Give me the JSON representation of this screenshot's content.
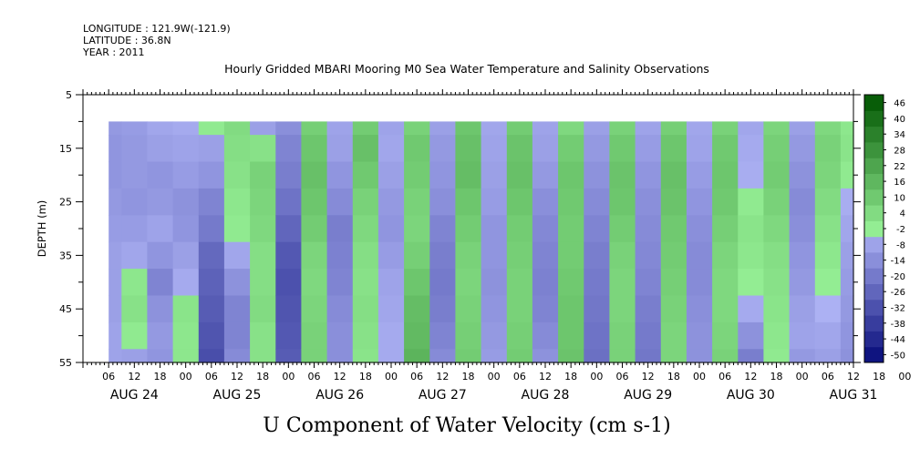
{
  "header": {
    "longitude": "LONGITUDE : 121.9W(-121.9)",
    "latitude": "LATITUDE : 36.8N",
    "year": "YEAR : 2011"
  },
  "chart_data": {
    "type": "heatmap",
    "title": "Hourly Gridded MBARI Mooring M0 Sea Water Temperature and Salinity Observations",
    "xlabel": "U Component of Water Velocity (cm s-1)",
    "ylabel": "DEPTH (m)",
    "ylim": [
      55,
      5
    ],
    "yticks": [
      5,
      15,
      25,
      35,
      45,
      55
    ],
    "xlim_hours": [
      0,
      180
    ],
    "data_start_hour": 6,
    "data_depth_range": [
      10,
      55
    ],
    "hour_tick_labels": [
      "06",
      "12",
      "18",
      "00",
      "06",
      "12",
      "18",
      "00",
      "06",
      "12",
      "18",
      "00",
      "06",
      "12",
      "18",
      "00",
      "06",
      "12",
      "18",
      "00",
      "06",
      "12",
      "18",
      "00",
      "06",
      "12",
      "18",
      "00",
      "06",
      "12",
      "18",
      "00"
    ],
    "day_labels": [
      "AUG 24",
      "AUG 25",
      "AUG 26",
      "AUG 27",
      "AUG 28",
      "AUG 29",
      "AUG 30",
      "AUG 31"
    ],
    "colorbar": {
      "levels": [
        -50,
        -44,
        -38,
        -32,
        -26,
        -20,
        -14,
        -8,
        -2,
        4,
        10,
        16,
        22,
        28,
        34,
        40,
        46
      ],
      "labels": [
        "46",
        "40",
        "34",
        "28",
        "22",
        "16",
        "10",
        "4",
        "-2",
        "-8",
        "-14",
        "-20",
        "-26",
        "-32",
        "-38",
        "-44",
        "-50"
      ]
    },
    "depths": [
      10,
      15,
      20,
      25,
      30,
      35,
      40,
      45,
      50,
      55
    ],
    "band_hours": [
      6,
      12,
      18,
      24,
      30,
      36,
      42,
      48,
      54,
      60,
      66,
      72,
      78,
      84,
      90,
      96,
      102,
      108,
      114,
      120,
      126,
      132,
      138,
      144,
      150,
      156,
      162,
      168,
      174,
      180
    ],
    "values": [
      [
        -8,
        -9,
        -9,
        -8,
        -7,
        -6,
        -6,
        -6,
        -5,
        -5
      ],
      [
        -7,
        -8,
        -8,
        -9,
        -7,
        -4,
        3,
        5,
        2,
        -6
      ],
      [
        -4,
        -6,
        -9,
        -8,
        -5,
        -9,
        -14,
        -10,
        -8,
        -9
      ],
      [
        -3,
        -5,
        -7,
        -10,
        -9,
        -6,
        -3,
        4,
        3,
        3
      ],
      [
        2,
        -6,
        -9,
        -14,
        -17,
        -22,
        -24,
        -26,
        -28,
        -30
      ],
      [
        7,
        6,
        5,
        3,
        2,
        -4,
        -10,
        -14,
        -14,
        -12
      ],
      [
        -6,
        5,
        10,
        9,
        8,
        6,
        6,
        7,
        5,
        5
      ],
      [
        -11,
        -14,
        -16,
        -19,
        -23,
        -27,
        -29,
        -28,
        -27,
        -26
      ],
      [
        11,
        14,
        16,
        14,
        12,
        9,
        8,
        9,
        10,
        10
      ],
      [
        -5,
        -6,
        -9,
        -12,
        -16,
        -15,
        -14,
        -12,
        -11,
        -11
      ],
      [
        12,
        16,
        13,
        10,
        8,
        6,
        5,
        6,
        5,
        4
      ],
      [
        -5,
        -4,
        -6,
        -8,
        -9,
        -7,
        -5,
        -4,
        -3,
        -3
      ],
      [
        10,
        13,
        12,
        10,
        9,
        11,
        14,
        17,
        18,
        20
      ],
      [
        -6,
        -8,
        -9,
        -11,
        -14,
        -16,
        -17,
        -16,
        -14,
        -12
      ],
      [
        14,
        16,
        17,
        14,
        12,
        10,
        9,
        10,
        11,
        12
      ],
      [
        -4,
        -5,
        -6,
        -7,
        -9,
        -9,
        -10,
        -9,
        -8,
        -7
      ],
      [
        12,
        15,
        16,
        14,
        12,
        11,
        10,
        10,
        11,
        12
      ],
      [
        -5,
        -6,
        -8,
        -11,
        -13,
        -14,
        -15,
        -14,
        -12,
        -10
      ],
      [
        8,
        12,
        14,
        13,
        12,
        12,
        13,
        14,
        14,
        15
      ],
      [
        -6,
        -8,
        -10,
        -12,
        -14,
        -16,
        -17,
        -18,
        -19,
        -20
      ],
      [
        10,
        13,
        15,
        14,
        12,
        10,
        9,
        9,
        10,
        10
      ],
      [
        -5,
        -7,
        -9,
        -11,
        -12,
        -13,
        -14,
        -16,
        -17,
        -18
      ],
      [
        11,
        14,
        16,
        15,
        13,
        12,
        11,
        10,
        9,
        9
      ],
      [
        -4,
        -5,
        -7,
        -9,
        -11,
        -12,
        -12,
        -11,
        -10,
        -10
      ],
      [
        10,
        13,
        14,
        13,
        11,
        9,
        8,
        8,
        9,
        10
      ],
      [
        -4,
        -3,
        -2,
        2,
        4,
        3,
        1,
        -3,
        -10,
        -16
      ],
      [
        9,
        11,
        12,
        10,
        8,
        6,
        5,
        4,
        3,
        2
      ],
      [
        -6,
        -8,
        -10,
        -12,
        -11,
        -9,
        -8,
        -6,
        -5,
        -8
      ],
      [
        8,
        10,
        9,
        7,
        5,
        3,
        1,
        -1,
        -4,
        -6
      ],
      [
        3,
        4,
        2,
        -2,
        -4,
        -6,
        -7,
        -8,
        -9,
        -10
      ]
    ]
  }
}
